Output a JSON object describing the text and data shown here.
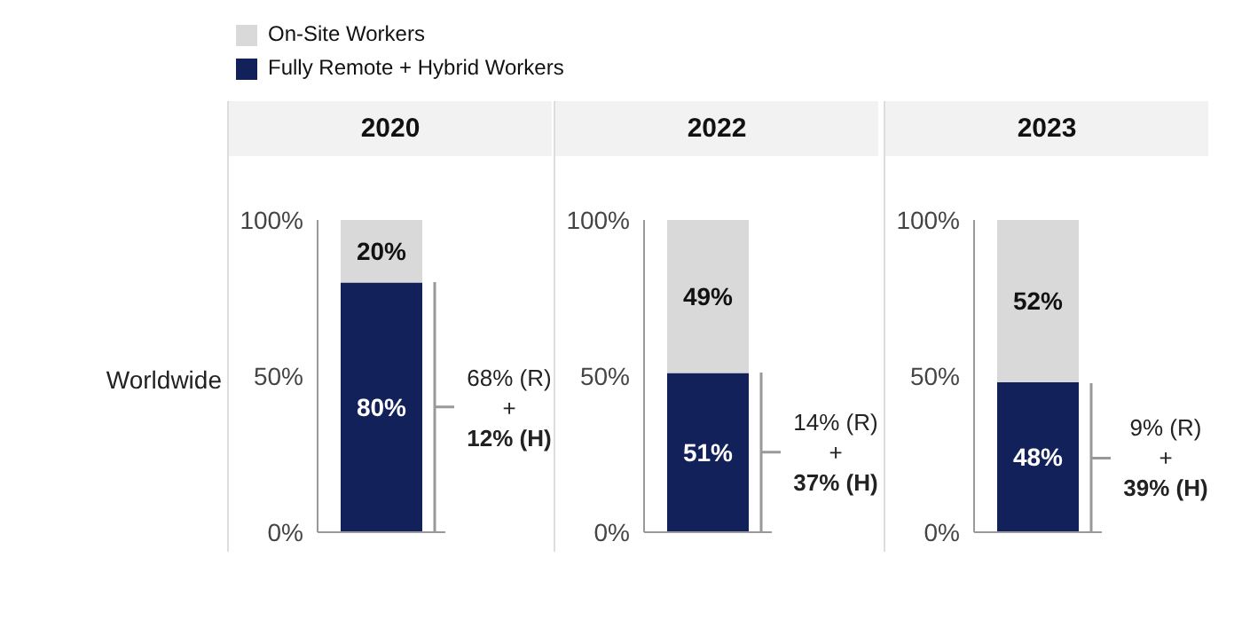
{
  "chart_data": [
    {
      "type": "bar",
      "title": "2020",
      "ylabel": "Worldwide",
      "stacked": true,
      "legend": "top",
      "categories": [
        null
      ],
      "series": [
        {
          "name": "Fully Remote + Hybrid Workers",
          "color": "#13215a",
          "values": [
            80
          ],
          "value_labels": [
            "80%"
          ]
        },
        {
          "name": "On-Site Workers",
          "color": "#d9d9d9",
          "values": [
            20
          ],
          "value_labels": [
            "20%"
          ]
        }
      ],
      "ylim": [
        0,
        100
      ],
      "yticks": [
        {
          "value": 0,
          "label": "0%"
        },
        {
          "value": 50,
          "label": "50%"
        },
        {
          "value": 100,
          "label": "100%"
        }
      ],
      "annotations": [
        "68% (R)",
        "+",
        "12% (H)"
      ]
    },
    {
      "type": "bar",
      "title": "2022",
      "stacked": true,
      "categories": [
        null
      ],
      "series": [
        {
          "color": "#13215a",
          "values": [
            51
          ],
          "value_labels": [
            "51%"
          ]
        },
        {
          "color": "#d9d9d9",
          "values": [
            49
          ],
          "value_labels": [
            "49%"
          ]
        }
      ],
      "ylim": [
        0,
        100
      ],
      "yticks": [
        {
          "value": 0,
          "label": "0%"
        },
        {
          "value": 50,
          "label": "50%"
        },
        {
          "value": 100,
          "label": "100%"
        }
      ],
      "annotations": [
        "14% (R)",
        "+",
        "37% (H)"
      ]
    },
    {
      "type": "bar",
      "title": "2023",
      "stacked": true,
      "categories": [
        null
      ],
      "series": [
        {
          "color": "#13215a",
          "values": [
            48
          ],
          "value_labels": [
            "48%"
          ]
        },
        {
          "color": "#d9d9d9",
          "values": [
            52
          ],
          "value_labels": [
            "52%"
          ]
        }
      ],
      "ylim": [
        0,
        100
      ],
      "yticks": [
        {
          "value": 0,
          "label": "0%"
        },
        {
          "value": 50,
          "label": "50%"
        },
        {
          "value": 100,
          "label": "100%"
        }
      ],
      "annotations": [
        "9% (R)",
        "+",
        "39% (H)"
      ]
    }
  ]
}
